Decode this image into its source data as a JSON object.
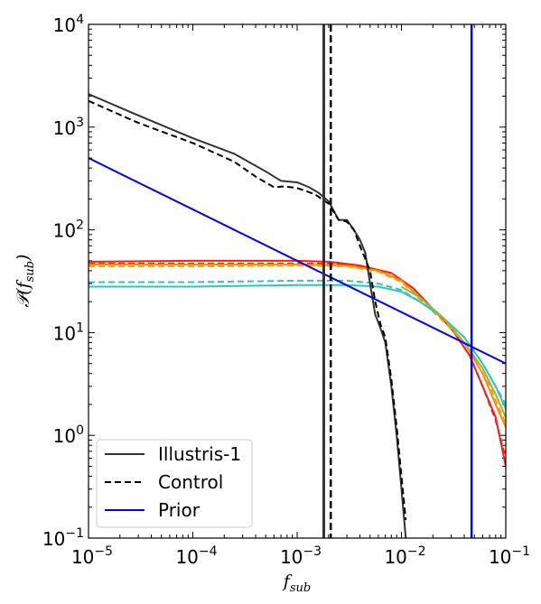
{
  "chart_data": {
    "type": "line",
    "xscale": "log",
    "yscale": "log",
    "xlim": [
      1e-05,
      0.1
    ],
    "ylim": [
      0.1,
      10000
    ],
    "xlabel_main": "f",
    "xlabel_sub": "sub",
    "ylabel_prefix": "𝒫(",
    "ylabel_main": "f",
    "ylabel_sub": "sub",
    "ylabel_suffix": ")",
    "x_ticks": [
      {
        "value": 1e-05,
        "base": "10",
        "exp": "−5"
      },
      {
        "value": 0.0001,
        "base": "10",
        "exp": "−4"
      },
      {
        "value": 0.001,
        "base": "10",
        "exp": "−3"
      },
      {
        "value": 0.01,
        "base": "10",
        "exp": "−2"
      },
      {
        "value": 0.1,
        "base": "10",
        "exp": "−1"
      }
    ],
    "y_ticks": [
      {
        "value": 0.1,
        "base": "10",
        "exp": "−1"
      },
      {
        "value": 1,
        "base": "10",
        "exp": "0"
      },
      {
        "value": 10,
        "base": "10",
        "exp": "1"
      },
      {
        "value": 100,
        "base": "10",
        "exp": "2"
      },
      {
        "value": 1000,
        "base": "10",
        "exp": "3"
      },
      {
        "value": 10000,
        "base": "10",
        "exp": "4"
      }
    ],
    "legend_position": "lower-left",
    "legend": [
      {
        "name": "Illustris-1",
        "color": "#333333",
        "dash": "solid"
      },
      {
        "name": "Control",
        "color": "#000000",
        "dash": "dashed"
      },
      {
        "name": "Prior",
        "color": "#0000ff",
        "dash": "solid"
      }
    ],
    "vlines": [
      {
        "x": 0.0018,
        "color": "#333333",
        "dash": "solid",
        "width": 3
      },
      {
        "x": 0.0021,
        "color": "#000000",
        "dash": "dashed",
        "width": 2.5
      },
      {
        "x": 0.047,
        "color": "#0000ff",
        "dash": "solid",
        "width": 2.5
      }
    ],
    "series": [
      {
        "name": "Illustris-1",
        "color": "#333333",
        "dash": "solid",
        "x": [
          1e-05,
          3e-05,
          0.0001,
          0.00025,
          0.0005,
          0.0007,
          0.001,
          0.0013,
          0.0016,
          0.002,
          0.0025,
          0.003,
          0.0035,
          0.004,
          0.0045,
          0.005,
          0.0056,
          0.0063,
          0.007,
          0.008,
          0.009,
          0.01,
          0.011
        ],
        "y": [
          2100,
          1300,
          780,
          550,
          370,
          300,
          290,
          260,
          230,
          190,
          125,
          125,
          100,
          80,
          60,
          30,
          15,
          11,
          8,
          3,
          1,
          0.3,
          0.1
        ]
      },
      {
        "name": "Control",
        "color": "#000000",
        "dash": "dashed",
        "x": [
          1e-05,
          3e-05,
          0.0001,
          0.00025,
          0.0004,
          0.0006,
          0.00075,
          0.001,
          0.0012,
          0.0015,
          0.002,
          0.0025,
          0.003,
          0.0035,
          0.004,
          0.005,
          0.0056,
          0.0063,
          0.007,
          0.008,
          0.009,
          0.01,
          0.011
        ],
        "y": [
          1800,
          1100,
          700,
          460,
          330,
          260,
          265,
          255,
          240,
          220,
          180,
          125,
          120,
          100,
          70,
          40,
          20,
          12,
          9,
          3.5,
          1.2,
          0.4,
          0.15
        ]
      },
      {
        "name": "Prior",
        "color": "#0000ff",
        "dash": "solid",
        "x": [
          1e-05,
          0.1
        ],
        "y": [
          500,
          5
        ]
      },
      {
        "name": "",
        "color": "#ff1a1a",
        "dash": "solid",
        "x": [
          1e-05,
          0.0001,
          0.001,
          0.002,
          0.004,
          0.008,
          0.013,
          0.02,
          0.03,
          0.045,
          0.06,
          0.08,
          0.1
        ],
        "y": [
          49,
          50,
          50,
          49,
          45,
          38,
          27,
          17,
          11,
          6,
          3,
          1.5,
          0.5
        ]
      },
      {
        "name": "",
        "color": "#ff1a1a",
        "dash": "dashed",
        "x": [
          1e-05,
          0.0001,
          0.001,
          0.002,
          0.004,
          0.008,
          0.013,
          0.02,
          0.03,
          0.045,
          0.06,
          0.08,
          0.1
        ],
        "y": [
          47,
          47,
          47,
          47,
          44,
          38,
          27,
          17,
          11,
          6,
          3,
          1.4,
          0.6
        ]
      },
      {
        "name": "",
        "color": "#ff8c00",
        "dash": "solid",
        "x": [
          1e-05,
          0.0001,
          0.001,
          0.003,
          0.006,
          0.01,
          0.015,
          0.025,
          0.04,
          0.06,
          0.08,
          0.1
        ],
        "y": [
          46,
          46,
          46,
          45,
          40,
          32,
          22,
          14,
          8,
          4,
          2,
          1.2
        ]
      },
      {
        "name": "",
        "color": "#ffa500",
        "dash": "dashed",
        "x": [
          1e-05,
          0.0001,
          0.001,
          0.003,
          0.006,
          0.01,
          0.015,
          0.025,
          0.04,
          0.06,
          0.08,
          0.1
        ],
        "y": [
          44,
          44,
          45,
          44,
          39,
          31,
          21,
          13,
          8,
          4.5,
          2.2,
          1.3
        ]
      },
      {
        "name": "",
        "color": "#2ec4c4",
        "dash": "solid",
        "x": [
          1e-05,
          0.0001,
          0.001,
          0.003,
          0.006,
          0.01,
          0.015,
          0.025,
          0.04,
          0.06,
          0.08,
          0.1
        ],
        "y": [
          28,
          28,
          29,
          29,
          28,
          25,
          20,
          14,
          9,
          5,
          3,
          1.8
        ]
      },
      {
        "name": "",
        "color": "#2ec4c4",
        "dash": "dashed",
        "x": [
          1e-05,
          0.0001,
          0.001,
          0.003,
          0.006,
          0.01,
          0.015,
          0.025,
          0.04,
          0.06,
          0.08,
          0.1
        ],
        "y": [
          31,
          31,
          32,
          32,
          30,
          26,
          20,
          14,
          9,
          5,
          3,
          2
        ]
      },
      {
        "name": "",
        "color": "#8fbc3f",
        "dash": "solid",
        "x": [
          0.01,
          0.015,
          0.025,
          0.04,
          0.06,
          0.08,
          0.1
        ],
        "y": [
          28,
          22,
          14,
          8,
          4.5,
          2.5,
          1.5
        ]
      }
    ]
  }
}
